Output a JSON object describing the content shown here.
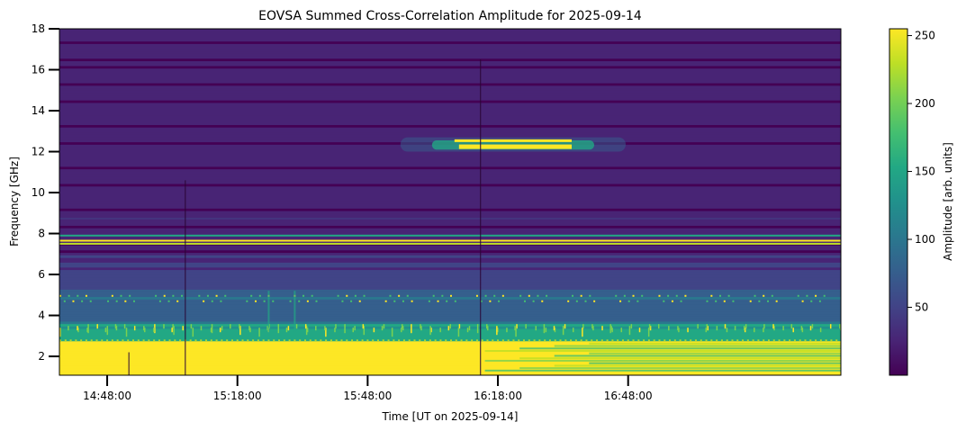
{
  "chart_data": {
    "type": "heatmap",
    "title": "EOVSA Summed Cross-Correlation Amplitude for 2025-09-14",
    "xlabel": "Time [UT on 2025-09-14]",
    "ylabel": "Frequency [GHz]",
    "x_tick_labels": [
      "14:48:00",
      "15:18:00",
      "15:48:00",
      "16:18:00",
      "16:48:00"
    ],
    "x_tick_minutes": [
      888,
      918,
      948,
      978,
      1008
    ],
    "xlim_minutes": [
      877,
      1057
    ],
    "y_ticks": [
      2,
      4,
      6,
      8,
      10,
      12,
      14,
      16,
      18
    ],
    "ylim": [
      1.08,
      18
    ],
    "colorbar": {
      "label": "Amplitude [arb. units]",
      "ticks": [
        50,
        100,
        150,
        200,
        250
      ],
      "range": [
        0,
        255
      ],
      "colormap": "viridis"
    },
    "features": [
      {
        "name": "saturated low band",
        "freq_range": [
          1.08,
          2.7
        ],
        "amplitude": 255
      },
      {
        "name": "bright RFI band",
        "freq_range": [
          2.9,
          3.5
        ],
        "amplitude": 170
      },
      {
        "name": "mid band",
        "freq_range": [
          4.6,
          5.2
        ],
        "amplitude": 90
      },
      {
        "name": "narrow RFI line upper",
        "freq": 7.65,
        "amplitude": 255
      },
      {
        "name": "narrow RFI line lower",
        "freq": 7.5,
        "amplitude": 240
      },
      {
        "name": "RFI line",
        "freq": 7.9,
        "amplitude": 150
      },
      {
        "name": "12 GHz burst",
        "freq_range": [
          12.1,
          12.6
        ],
        "time_range_minutes": [
          968,
          995
        ],
        "amplitude": 255
      }
    ],
    "gap_lines_minutes": [
      893,
      906,
      974
    ]
  }
}
